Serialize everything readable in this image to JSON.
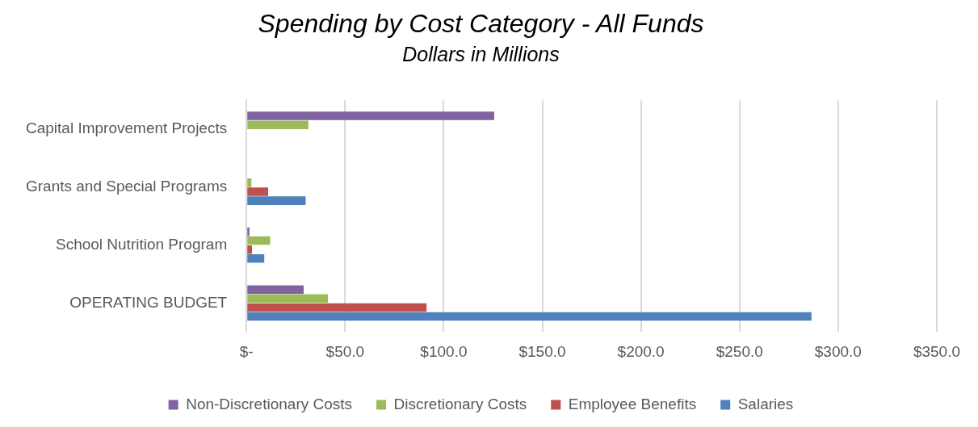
{
  "chart_data": {
    "type": "bar",
    "orientation": "horizontal",
    "title": "Spending by Cost Category - All Funds",
    "subtitle": "Dollars in Millions",
    "categories": [
      "Capital Improvement Projects",
      "Grants and Special Programs",
      "School Nutrition Program",
      "OPERATING BUDGET"
    ],
    "series": [
      {
        "name": "Non-Discretionary Costs",
        "color": "#8064a2",
        "values": [
          125.6,
          0,
          1.5,
          29
        ]
      },
      {
        "name": "Discretionary Costs",
        "color": "#9bbb59",
        "values": [
          31.4,
          2.5,
          12,
          41.3
        ]
      },
      {
        "name": "Employee Benefits",
        "color": "#c0504d",
        "values": [
          0,
          11,
          2.8,
          91.3
        ]
      },
      {
        "name": "Salaries",
        "color": "#4f81bd",
        "values": [
          0,
          30,
          9,
          286.5
        ]
      }
    ],
    "xlim": [
      0,
      350
    ],
    "xticks": [
      {
        "value": 0,
        "label": "$-"
      },
      {
        "value": 50,
        "label": "$50.0"
      },
      {
        "value": 100,
        "label": "$100.0"
      },
      {
        "value": 150,
        "label": "$150.0"
      },
      {
        "value": 200,
        "label": "$200.0"
      },
      {
        "value": 250,
        "label": "$250.0"
      },
      {
        "value": 300,
        "label": "$300.0"
      },
      {
        "value": 350,
        "label": "$350.0"
      }
    ],
    "grid": "x",
    "legend": "bottom"
  }
}
